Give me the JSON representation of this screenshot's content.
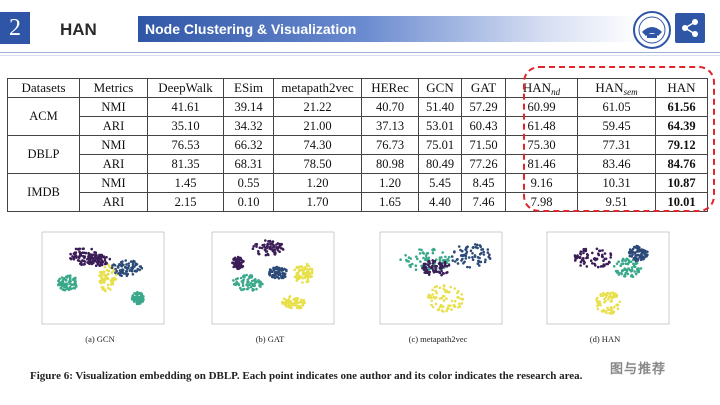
{
  "header": {
    "slide_number": "2",
    "section": "HAN",
    "banner_title": "Node Clustering & Visualization"
  },
  "table": {
    "head": {
      "datasets": "Datasets",
      "metrics": "Metrics",
      "deepwalk": "DeepWalk",
      "esim": "ESim",
      "metapath2vec": "metapath2vec",
      "herec": "HERec",
      "gcn": "GCN",
      "gat": "GAT",
      "han_nd": "HAN",
      "han_nd_sub": "nd",
      "han_sem": "HAN",
      "han_sem_sub": "sem",
      "han": "HAN"
    },
    "datasets": [
      "ACM",
      "DBLP",
      "IMDB"
    ],
    "rows": [
      {
        "metric": "NMI",
        "values": [
          "41.61",
          "39.14",
          "21.22",
          "40.70",
          "51.40",
          "57.29",
          "60.99",
          "61.05",
          "61.56"
        ]
      },
      {
        "metric": "ARI",
        "values": [
          "35.10",
          "34.32",
          "21.00",
          "37.13",
          "53.01",
          "60.43",
          "61.48",
          "59.45",
          "64.39"
        ]
      },
      {
        "metric": "NMI",
        "values": [
          "76.53",
          "66.32",
          "74.30",
          "76.73",
          "75.01",
          "71.50",
          "75.30",
          "77.31",
          "79.12"
        ]
      },
      {
        "metric": "ARI",
        "values": [
          "81.35",
          "68.31",
          "78.50",
          "80.98",
          "80.49",
          "77.26",
          "81.46",
          "83.46",
          "84.76"
        ]
      },
      {
        "metric": "NMI",
        "values": [
          "1.45",
          "0.55",
          "1.20",
          "1.20",
          "5.45",
          "8.45",
          "9.16",
          "10.31",
          "10.87"
        ]
      },
      {
        "metric": "ARI",
        "values": [
          "2.15",
          "0.10",
          "1.70",
          "1.65",
          "4.40",
          "7.46",
          "7.98",
          "9.51",
          "10.01"
        ]
      }
    ]
  },
  "figure": {
    "captions": [
      "(a)  GCN",
      "(b)  GAT",
      "(c)  metapath2vec",
      "(d)  HAN"
    ],
    "caption": "Figure 6: Visualization embedding on DBLP. Each point indicates one author and its color indicates the research area."
  },
  "watermark": "图与推荐",
  "colors": {
    "accent": "#2f56a6",
    "highlight": "#e0262b",
    "purple": "#3b1d57",
    "teal": "#3aa88a",
    "yellow": "#e8e04a",
    "navy": "#2c4a78"
  }
}
